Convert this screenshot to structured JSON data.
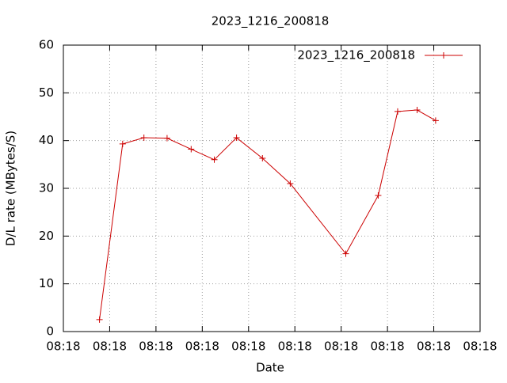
{
  "chart_data": {
    "type": "line",
    "title": "2023_1216_200818",
    "x_label": "Date",
    "y_label": "D/L rate (MBytes/S)",
    "series": [
      {
        "name": "2023_1216_200818",
        "color": "#cc0000",
        "x": [
          3.9,
          6.4,
          8.7,
          11.2,
          13.8,
          16.3,
          18.7,
          21.5,
          24.5,
          30.5,
          34.0,
          36.1,
          38.2,
          40.2
        ],
        "values": [
          2.5,
          39.3,
          40.6,
          40.5,
          38.2,
          36.0,
          40.6,
          36.3,
          31.0,
          16.3,
          28.5,
          46.1,
          46.4,
          44.2
        ]
      }
    ],
    "xlim": [
      0,
      45
    ],
    "xticks": [
      {
        "value": 0,
        "label": "08:18"
      },
      {
        "value": 5,
        "label": "08:18"
      },
      {
        "value": 10,
        "label": "08:18"
      },
      {
        "value": 15,
        "label": "08:18"
      },
      {
        "value": 20,
        "label": "08:18"
      },
      {
        "value": 25,
        "label": "08:18"
      },
      {
        "value": 30,
        "label": "08:18"
      },
      {
        "value": 35,
        "label": "08:18"
      },
      {
        "value": 40,
        "label": "08:18"
      },
      {
        "value": 45,
        "label": "08:18"
      }
    ],
    "ylim": [
      0,
      60
    ],
    "yticks": [
      0,
      10,
      20,
      30,
      40,
      50,
      60
    ],
    "grid": true,
    "legend": "top-right"
  }
}
